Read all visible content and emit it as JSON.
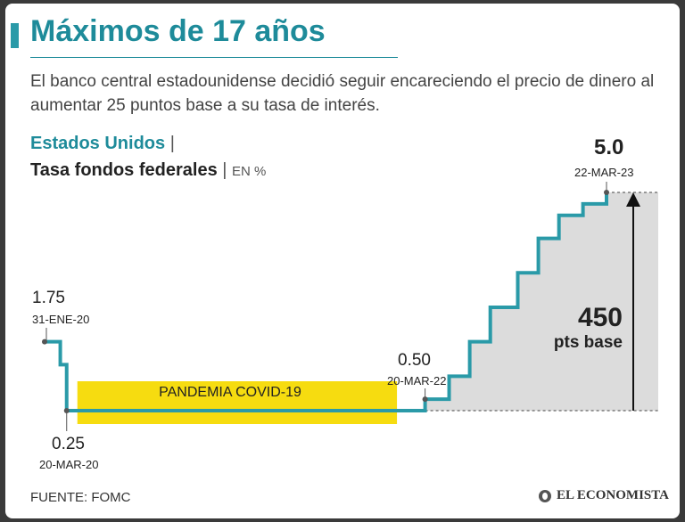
{
  "header": {
    "title": "Máximos de 17 años",
    "subtitle": "El banco central estadounidense decidió seguir encareciendo el precio de dinero al aumentar 25 puntos base a su tasa de interés."
  },
  "legend": {
    "country": "Estados Unidos",
    "series_name": "Tasa fondos federales",
    "unit": "EN %"
  },
  "annotations": {
    "start": {
      "value": "1.75",
      "date": "31-ENE-20"
    },
    "low": {
      "value": "0.25",
      "date": "20-MAR-20"
    },
    "first_hike": {
      "value": "0.50",
      "date": "20-MAR-22"
    },
    "latest": {
      "value": "5.0",
      "date": "22-MAR-23"
    },
    "increase": {
      "value": "450",
      "label": "pts base"
    },
    "band": "PANDEMIA COVID-19"
  },
  "footer": {
    "source": "FUENTE: FOMC",
    "brand": "EL ECONOMISTA"
  },
  "colors": {
    "line": "#2a9aa8",
    "band": "#f6dc10",
    "fill": "#dcdcdc",
    "title": "#1e8b9a"
  },
  "chart_data": {
    "type": "line",
    "step": true,
    "title": "Tasa fondos federales",
    "ylabel": "EN %",
    "x": [
      "2020-01-31",
      "2020-03-03",
      "2020-03-16",
      "2022-03-17",
      "2022-05-05",
      "2022-06-16",
      "2022-07-28",
      "2022-09-22",
      "2022-11-03",
      "2022-12-15",
      "2023-02-02",
      "2023-03-22"
    ],
    "values": [
      1.75,
      1.25,
      0.25,
      0.5,
      1.0,
      1.75,
      2.5,
      3.25,
      4.0,
      4.5,
      4.75,
      5.0
    ],
    "x_range": [
      "2020-01-31",
      "2023-03-22"
    ],
    "ylim": [
      0.25,
      5.0
    ],
    "highlight_band": {
      "label": "PANDEMIA COVID-19",
      "from": "2020-03-16",
      "to": "2022-01-15"
    }
  }
}
